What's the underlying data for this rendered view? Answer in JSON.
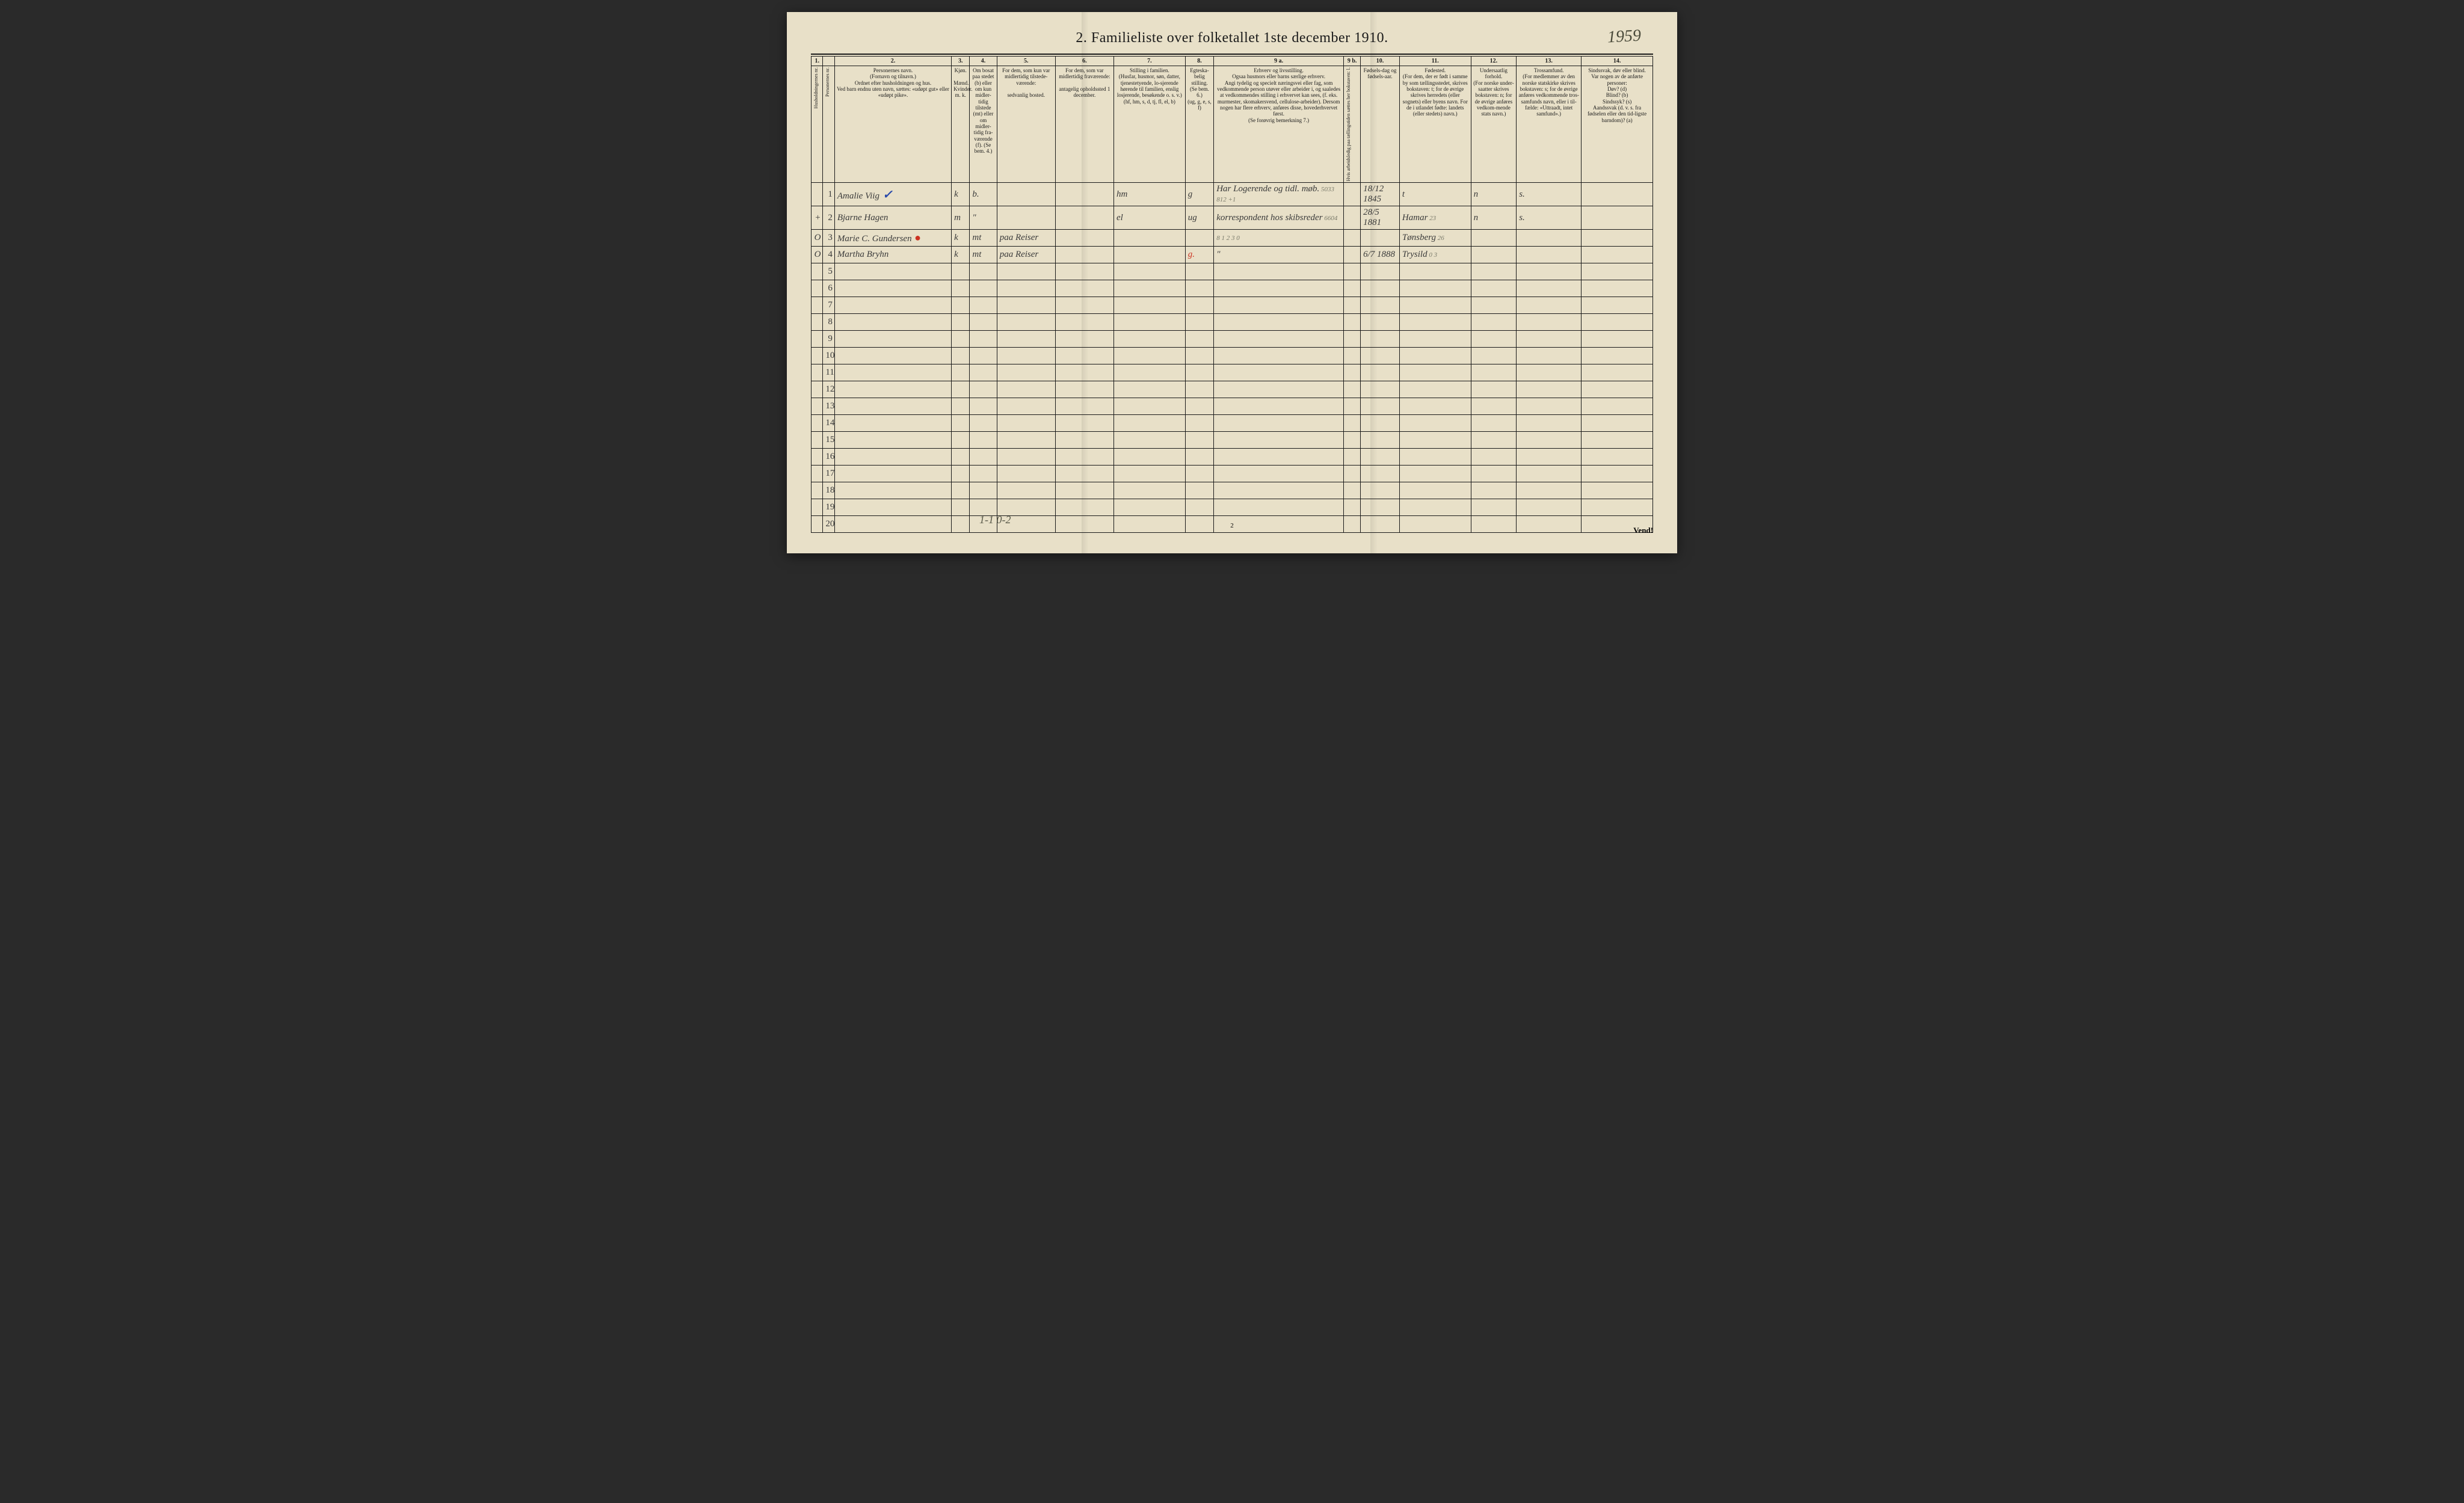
{
  "colors": {
    "paper": "#e8e0c8",
    "ink": "#1a1a1a",
    "handwriting": "#3a3a3a",
    "blue_pencil": "#2a4aaa",
    "red_pencil": "#cc3322",
    "faded_pencil": "#7a7a6a"
  },
  "title": "2.  Familieliste over folketallet 1ste december 1910.",
  "topright_handwritten": "1959",
  "column_numbers": [
    "1.",
    "",
    "2.",
    "3.",
    "4.",
    "5.",
    "6.",
    "7.",
    "8.",
    "9 a.",
    "9 b.",
    "10.",
    "11.",
    "12.",
    "13.",
    "14."
  ],
  "headers": {
    "c1": "Husholdningernes nr.",
    "c1b": "Personernes nr.",
    "c2": "Personernes navn.\n(Fornavn og tilnavn.)\nOrdnet efter husholdningen og hus.\nVed barn endnu uten navn, sættes: «udøpt gut» eller «udøpt pike».",
    "c3": "Kjøn.\n\nMænd. Kvinder.\nm.  k.",
    "c4": "Om bosat paa stedet (b) eller om kun midler-tidig tilstede (mt) eller om midler-tidig fra-værende (f). (Se bem. 4.)",
    "c5": "For dem, som kun var midlertidig tilstede-værende:\n\nsedvanlig bosted.",
    "c6": "For dem, som var midlertidig fraværende:\n\nantagelig opholdssted 1 december.",
    "c7": "Stilling i familien.\n(Husfar, husmor, søn, datter, tjenestetyende, lo-sjerende hørende til familien, enslig losjerende, besøkende o. s. v.)\n(hf, hm, s, d, tj, fl, el, b)",
    "c8": "Egteska-belig stilling.\n(Se bem. 6.)\n(ug, g, e, s, f)",
    "c9a": "Erhverv og livsstilling.\nOgsaa husmors eller barns særlige erhverv.\nAngi tydelig og specielt næringsvei eller fag, som vedkommende person utøver eller arbeider i, og saaledes at vedkommendes stilling i erhvervet kan sees, (f. eks. murmester, skomakersvend, cellulose-arbeider). Dersom nogen har flere erhverv, anføres disse, hovederhvervet først.\n(Se forøvrig bemerkning 7.)",
    "c9b": "Hvis arbeidsledig paa tællingstiden sættes her bokstaven: l.",
    "c10": "Fødsels-dag og fødsels-aar.",
    "c11": "Fødested.\n(For dem, der er født i samme by som tællingsstedet, skrives bokstaven: t; for de øvrige skrives herredets (eller sognets) eller byens navn. For de i utlandet fødte: landets (eller stedets) navn.)",
    "c12": "Undersaatlig forhold.\n(For norske under-saatter skrives bokstaven: n; for de øvrige anføres vedkom-mende stats navn.)",
    "c13": "Trossamfund.\n(For medlemmer av den norske statskirke skrives bokstaven: s; for de øvrige anføres vedkommende tros-samfunds navn, eller i til-fælde: «Uttraadt, intet samfund».)",
    "c14": "Sindssvak, døv eller blind.\nVar nogen av de anførte personer:\nDøv? (d)\nBlind? (b)\nSindssyk? (s)\nAandssvak (d. v. s. fra fødselen eller den tid-ligste barndom)? (a)"
  },
  "column_widths": [
    "18px",
    "18px",
    "180px",
    "28px",
    "42px",
    "90px",
    "90px",
    "110px",
    "44px",
    "200px",
    "26px",
    "60px",
    "110px",
    "70px",
    "100px",
    "110px"
  ],
  "rows": [
    {
      "n": "1",
      "name": "Amalie Viig",
      "name_mark": "✓",
      "kjon": "k",
      "bosat": "b.",
      "c5": "",
      "c6": "",
      "c7": "hm",
      "c8": "g",
      "c9a": "Har Logerende og tidl. møb.",
      "c9a_pencil": "5033  812  +1",
      "c10": "18/12 1845",
      "c11": "t",
      "c12": "n",
      "c13": "s.",
      "c14": ""
    },
    {
      "n": "2",
      "prefix": "+",
      "name": "Bjarne Hagen",
      "kjon": "m",
      "bosat": "\"",
      "c5": "",
      "c6": "",
      "c7": "el",
      "c8": "ug",
      "c9a": "korrespondent hos skibsreder",
      "c9a_pencil": "6604",
      "c10": "28/5 1881",
      "c11": "Hamar",
      "c11_pencil": "23",
      "c12": "n",
      "c13": "s.",
      "c14": ""
    },
    {
      "n": "3",
      "prefix": "O",
      "name": "Marie C. Gundersen",
      "name_mark": "●",
      "kjon": "k",
      "bosat": "mt",
      "c5": "paa Reiser",
      "c6": "",
      "c7": "",
      "c8": "",
      "c9a": "",
      "c9a_pencil": "8 1 2 3 0",
      "c10": "",
      "c11": "Tønsberg",
      "c11_pencil": "26",
      "c12": "",
      "c13": "",
      "c14": ""
    },
    {
      "n": "4",
      "prefix": "O",
      "name": "Martha Bryhn",
      "kjon": "k",
      "bosat": "mt",
      "c5": "paa Reiser",
      "c6": "",
      "c7": "",
      "c8": "g.",
      "c8_red": true,
      "c9a": "\"",
      "c10": "6/7 1888",
      "c11": "Trysild",
      "c11_pencil": "0 3",
      "c12": "",
      "c13": "",
      "c14": ""
    }
  ],
  "empty_rows": [
    5,
    6,
    7,
    8,
    9,
    10,
    11,
    12,
    13,
    14,
    15,
    16,
    17,
    18,
    19,
    20
  ],
  "bottom_handwritten": "1-1    0-2",
  "page_number": "2",
  "vend": "Vend!"
}
